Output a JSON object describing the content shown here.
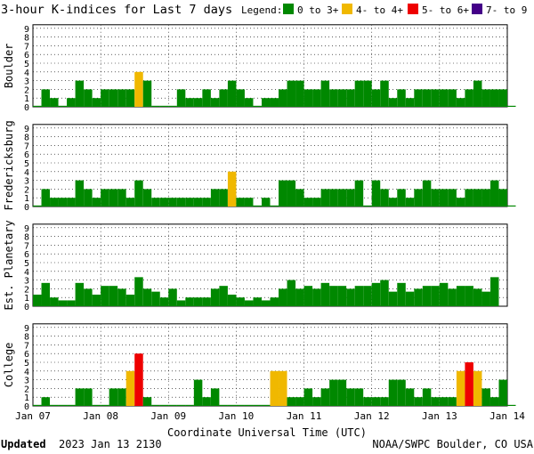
{
  "chart_data": {
    "type": "bar",
    "title": "3-hour K-indices for Last 7 days",
    "legend_title": "Legend:",
    "legend": [
      {
        "label": "0 to 3+",
        "color": "#008800"
      },
      {
        "label": "4- to 4+",
        "color": "#f0b800"
      },
      {
        "label": "5- to 6+",
        "color": "#ee0000"
      },
      {
        "label": "7- to 9",
        "color": "#440088"
      }
    ],
    "ylim": [
      0,
      9
    ],
    "yticks": [
      "0",
      "1",
      "2",
      "3",
      "4",
      "5",
      "6",
      "7",
      "8",
      "9"
    ],
    "xticks": [
      "Jan 07",
      "Jan 08",
      "Jan 09",
      "Jan 10",
      "Jan 11",
      "Jan 12",
      "Jan 13",
      "Jan 14"
    ],
    "xlabel": "Coordinate Universal Time (UTC)",
    "grid": true,
    "panels": [
      {
        "name": "Boulder",
        "values": [
          0,
          2,
          1,
          0,
          1,
          3,
          2,
          1,
          2,
          2,
          2,
          2,
          4,
          3,
          0,
          0,
          0,
          2,
          1,
          1,
          2,
          1,
          2,
          3,
          2,
          1,
          0,
          1,
          1,
          2,
          3,
          3,
          2,
          2,
          3,
          2,
          2,
          2,
          3,
          3,
          2,
          3,
          1,
          2,
          1,
          2,
          2,
          2,
          2,
          2,
          1,
          2,
          3,
          2,
          2,
          2,
          0
        ]
      },
      {
        "name": "Fredericksburg",
        "values": [
          0,
          2,
          1,
          1,
          1,
          3,
          2,
          1,
          2,
          2,
          2,
          1,
          3,
          2,
          1,
          1,
          1,
          1,
          1,
          1,
          1,
          2,
          2,
          4,
          1,
          1,
          0,
          1,
          0,
          3,
          3,
          2,
          1,
          1,
          2,
          2,
          2,
          2,
          3,
          0,
          3,
          2,
          1,
          2,
          1,
          2,
          3,
          2,
          2,
          2,
          1,
          2,
          2,
          2,
          3,
          2,
          0
        ]
      },
      {
        "name": "Est. Planetary",
        "values": [
          1.33,
          2.67,
          1,
          0.67,
          0.67,
          2.67,
          2,
          1.33,
          2.33,
          2.33,
          2,
          1.33,
          3.33,
          2,
          1.67,
          1,
          2,
          0.67,
          1,
          1,
          1,
          2,
          2.33,
          1.33,
          1,
          0.67,
          1,
          0.67,
          1,
          2,
          3,
          2,
          2.33,
          2,
          2.67,
          2.33,
          2.33,
          2,
          2.33,
          2.33,
          2.67,
          3,
          1.67,
          2.67,
          1.67,
          2,
          2.33,
          2.33,
          2.67,
          2,
          2.33,
          2.33,
          2,
          1.67,
          3.33
        ]
      },
      {
        "name": "College",
        "values": [
          0,
          1,
          0,
          0,
          0,
          2,
          2,
          0,
          0,
          2,
          2,
          4,
          6,
          1,
          0,
          0,
          0,
          0,
          0,
          3,
          1,
          2,
          0,
          0,
          0,
          0,
          0,
          0,
          4,
          4,
          1,
          1,
          2,
          1,
          2,
          3,
          3,
          2,
          2,
          1,
          1,
          1,
          3,
          3,
          2,
          1,
          2,
          1,
          1,
          1,
          4,
          5,
          4,
          2,
          1,
          3,
          0
        ]
      }
    ]
  },
  "footer": {
    "updated_label": "Updated",
    "updated_value": "2023 Jan 13 2130",
    "source": "NOAA/SWPC Boulder, CO USA"
  }
}
